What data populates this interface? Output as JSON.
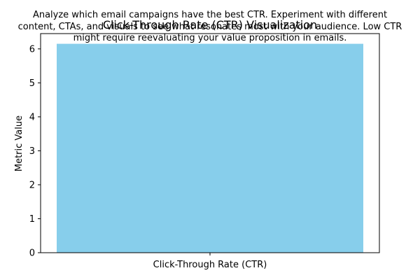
{
  "chart_data": {
    "type": "bar",
    "title": "Click-Through Rate (CTR) Visualization",
    "annotation": [
      "Analyze which email campaigns have the best CTR. Experiment with different",
      "content, CTAs, and visuals to see what resonates most with your audience. Low CTR",
      "might require reevaluating your value proposition in emails."
    ],
    "categories": [
      "Click-Through Rate (CTR)"
    ],
    "values": [
      6.15
    ],
    "xlabel": "",
    "ylabel": "Metric Value",
    "ylim": [
      0,
      6.45
    ],
    "yticks": [
      "0",
      "1",
      "2",
      "3",
      "4",
      "5",
      "6"
    ],
    "grid": false,
    "legend": "none",
    "bar_color": "#87CEEB"
  }
}
